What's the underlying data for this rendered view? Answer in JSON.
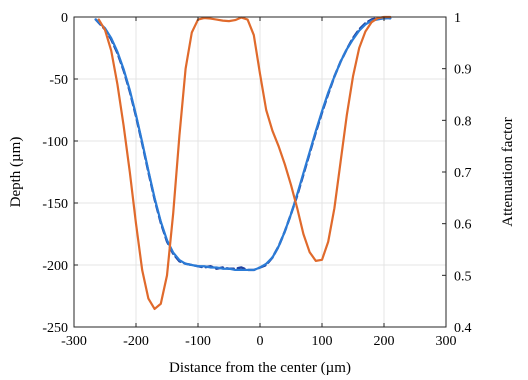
{
  "chart_data": {
    "type": "line",
    "xlabel": "Distance from the center (µm)",
    "ylabel_left": "Depth (µm)",
    "ylabel_right": "Attenuation factor",
    "xlim": [
      -300,
      300
    ],
    "ylim_left": [
      -250,
      0
    ],
    "ylim_right": [
      0.4,
      1.0
    ],
    "x_ticks": [
      -300,
      -200,
      -100,
      0,
      100,
      200,
      300
    ],
    "y_left_ticks": [
      -250,
      -200,
      -150,
      -100,
      -50,
      0
    ],
    "y_right_ticks": [
      0.4,
      0.5,
      0.6,
      0.7,
      0.8,
      0.9,
      1.0
    ],
    "x_tick_labels": [
      "-300",
      "-200",
      "-100",
      "0",
      "100",
      "200",
      "300"
    ],
    "y_left_tick_labels": [
      "-250",
      "-200",
      "-150",
      "-100",
      "-50",
      "0"
    ],
    "y_right_tick_labels": [
      "0.4",
      "0.5",
      "0.6",
      "0.7",
      "0.8",
      "0.9",
      "1"
    ],
    "grid": true,
    "colors": {
      "depth_measured": "#1f3f9e",
      "depth_fit": "#2b7bd6",
      "attenuation": "#e06a2c"
    },
    "series": [
      {
        "key": "depth_measured",
        "axis": "left",
        "style": "dashed",
        "x": [
          -265,
          -250,
          -240,
          -230,
          -220,
          -210,
          -200,
          -190,
          -180,
          -170,
          -160,
          -150,
          -140,
          -130,
          -120,
          -110,
          -100,
          -90,
          -80,
          -70,
          -60,
          -50,
          -40,
          -30,
          -20,
          -10,
          0,
          10,
          20,
          30,
          40,
          50,
          60,
          70,
          80,
          90,
          100,
          110,
          120,
          130,
          140,
          150,
          160,
          170,
          180,
          190,
          200,
          210
        ],
        "y": [
          -2,
          -10,
          -18,
          -29,
          -43,
          -60,
          -80,
          -102,
          -125,
          -147,
          -166,
          -181,
          -191,
          -197,
          -199,
          -200,
          -201,
          -202,
          -201,
          -203,
          -202,
          -203,
          -203,
          -202,
          -204,
          -204,
          -202,
          -200,
          -194,
          -185,
          -173,
          -159,
          -144,
          -127,
          -110,
          -93,
          -77,
          -62,
          -48,
          -36,
          -26,
          -17,
          -10,
          -5,
          -2,
          -1,
          -1,
          -1
        ]
      },
      {
        "key": "depth_fit",
        "axis": "left",
        "style": "solid",
        "x": [
          -265,
          -250,
          -240,
          -230,
          -220,
          -210,
          -200,
          -190,
          -180,
          -170,
          -160,
          -150,
          -140,
          -130,
          -120,
          -110,
          -100,
          -90,
          -80,
          -70,
          -60,
          -50,
          -40,
          -30,
          -20,
          -10,
          0,
          10,
          20,
          30,
          40,
          50,
          60,
          70,
          80,
          90,
          100,
          110,
          120,
          130,
          140,
          150,
          160,
          170,
          180,
          190,
          200,
          210
        ],
        "y": [
          -2,
          -9,
          -17,
          -28,
          -42,
          -59,
          -79,
          -101,
          -124,
          -146,
          -165,
          -180,
          -190,
          -196,
          -199,
          -200,
          -201,
          -201,
          -202,
          -202,
          -203,
          -203,
          -204,
          -204,
          -204,
          -204,
          -202,
          -199,
          -194,
          -185,
          -173,
          -159,
          -143,
          -126,
          -109,
          -92,
          -76,
          -61,
          -48,
          -36,
          -26,
          -18,
          -11,
          -6,
          -3,
          -2,
          -1,
          -1
        ]
      },
      {
        "key": "attenuation",
        "axis": "right",
        "style": "solid",
        "x": [
          -260,
          -250,
          -240,
          -230,
          -220,
          -210,
          -200,
          -190,
          -180,
          -170,
          -160,
          -150,
          -140,
          -130,
          -120,
          -110,
          -100,
          -90,
          -80,
          -70,
          -60,
          -50,
          -40,
          -30,
          -20,
          -10,
          0,
          10,
          20,
          30,
          40,
          50,
          60,
          70,
          80,
          90,
          100,
          110,
          120,
          130,
          140,
          150,
          160,
          170,
          180,
          190,
          200,
          210
        ],
        "y": [
          0.995,
          0.975,
          0.935,
          0.87,
          0.79,
          0.7,
          0.6,
          0.51,
          0.455,
          0.435,
          0.445,
          0.5,
          0.62,
          0.77,
          0.9,
          0.97,
          0.995,
          0.998,
          0.997,
          0.995,
          0.993,
          0.992,
          0.994,
          0.999,
          0.995,
          0.965,
          0.89,
          0.82,
          0.78,
          0.75,
          0.715,
          0.675,
          0.63,
          0.58,
          0.545,
          0.528,
          0.53,
          0.565,
          0.63,
          0.72,
          0.81,
          0.885,
          0.94,
          0.972,
          0.99,
          0.998,
          1.0,
          1.0
        ]
      }
    ]
  }
}
